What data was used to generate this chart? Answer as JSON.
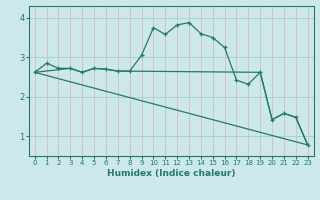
{
  "xlabel": "Humidex (Indice chaleur)",
  "bg_color": "#cce8ea",
  "line_color": "#217a6a",
  "grid_color_h": "#9ecfcf",
  "grid_color_v": "#ddb0b0",
  "xlim": [
    -0.5,
    23.5
  ],
  "ylim": [
    0.5,
    4.3
  ],
  "yticks": [
    1,
    2,
    3,
    4
  ],
  "xticks": [
    0,
    1,
    2,
    3,
    4,
    5,
    6,
    7,
    8,
    9,
    10,
    11,
    12,
    13,
    14,
    15,
    16,
    17,
    18,
    19,
    20,
    21,
    22,
    23
  ],
  "line1_x": [
    0,
    1,
    2,
    3,
    4,
    5,
    6,
    7,
    8,
    9,
    10,
    11,
    12,
    13,
    14,
    15,
    16,
    17,
    18,
    19,
    20,
    21,
    22,
    23
  ],
  "line1_y": [
    2.62,
    2.85,
    2.72,
    2.72,
    2.62,
    2.72,
    2.7,
    2.65,
    2.65,
    3.05,
    3.75,
    3.58,
    3.82,
    3.88,
    3.6,
    3.5,
    3.25,
    2.42,
    2.32,
    2.62,
    1.42,
    1.58,
    1.48,
    0.78
  ],
  "line2_x": [
    0,
    3,
    4,
    5,
    6,
    7,
    8,
    19,
    20,
    21,
    22,
    23
  ],
  "line2_y": [
    2.62,
    2.72,
    2.62,
    2.72,
    2.7,
    2.65,
    2.65,
    2.62,
    1.42,
    1.58,
    1.48,
    0.78
  ],
  "line3_x": [
    0,
    23
  ],
  "line3_y": [
    2.62,
    0.78
  ]
}
